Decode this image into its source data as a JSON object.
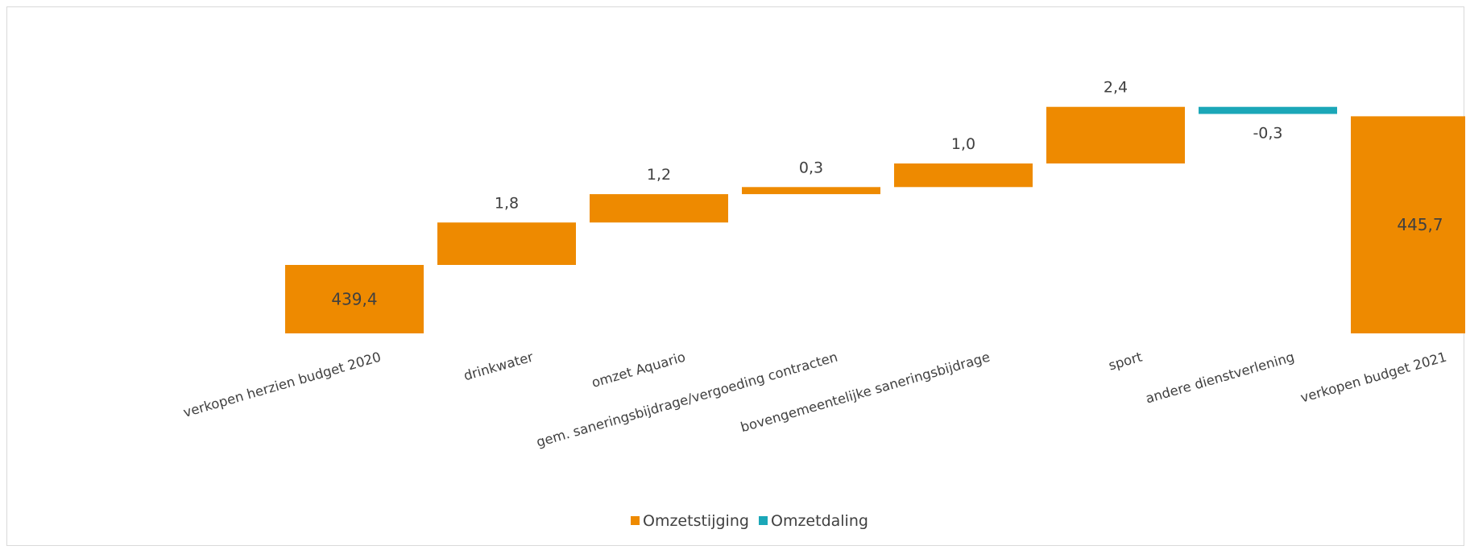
{
  "chart_data": {
    "type": "bar",
    "subtype": "waterfall",
    "title": "",
    "xlabel": "",
    "ylabel": "",
    "categories": [
      "verkopen herzien budget 2020",
      "drinkwater",
      "omzet Aquario",
      "gem. saneringsbijdrage/vergoeding contracten",
      "bovengemeentelijke saneringsbijdrage",
      "sport",
      "andere dienstverlening",
      "verkopen budget 2021"
    ],
    "values": [
      439.4,
      1.8,
      1.2,
      0.3,
      1.0,
      2.4,
      -0.3,
      445.7
    ],
    "value_labels": [
      "439,4",
      "1,8",
      "1,2",
      "0,3",
      "1,0",
      "2,4",
      "-0,3",
      "445,7"
    ],
    "bar_kinds": [
      "total",
      "increase",
      "increase",
      "increase",
      "increase",
      "increase",
      "decrease",
      "total"
    ],
    "legend": {
      "position": "bottom",
      "items": [
        {
          "name": "Omzetstijging",
          "color": "#EE8A00"
        },
        {
          "name": "Omzetdaling",
          "color": "#1BA7B8"
        }
      ]
    },
    "colors": {
      "increase": "#EE8A00",
      "decrease": "#1BA7B8",
      "total": "#EE8A00"
    },
    "grid": false,
    "axes_visible": false
  }
}
